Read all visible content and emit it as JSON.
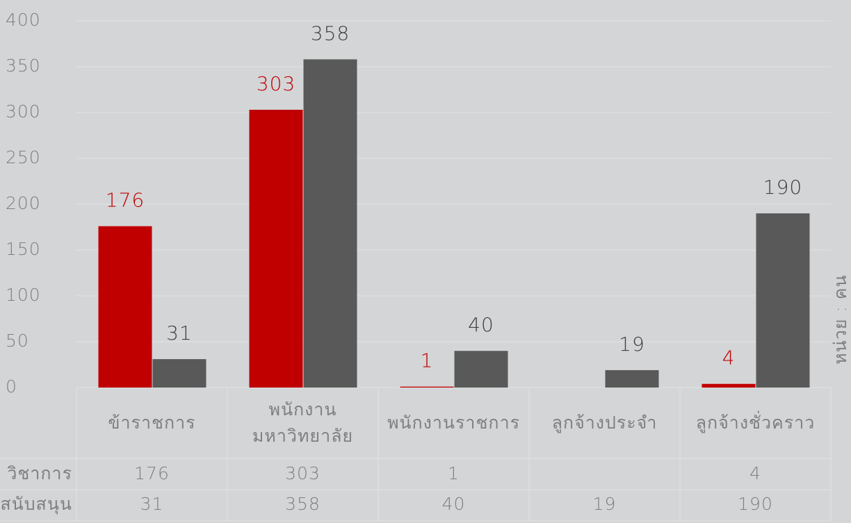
{
  "chart_data": {
    "type": "bar",
    "categories": [
      "ข้าราชการ",
      "พนักงาน\nมหาวิทยาลัย",
      "พนักงานราชการ",
      "ลูกจ้างประจำ",
      "ลูกจ้างชั่วคราว"
    ],
    "series": [
      {
        "name": "วิชาการ",
        "color": "#c00000",
        "values": [
          176,
          303,
          1,
          null,
          4
        ]
      },
      {
        "name": "สนับสนุน",
        "color": "#595959",
        "values": [
          31,
          358,
          40,
          19,
          190
        ]
      }
    ],
    "ylim": [
      0,
      400
    ],
    "yticks": [
      0,
      50,
      100,
      150,
      200,
      250,
      300,
      350,
      400
    ],
    "grid": true,
    "y_label": "หน่วย : คน",
    "data_table": true
  }
}
